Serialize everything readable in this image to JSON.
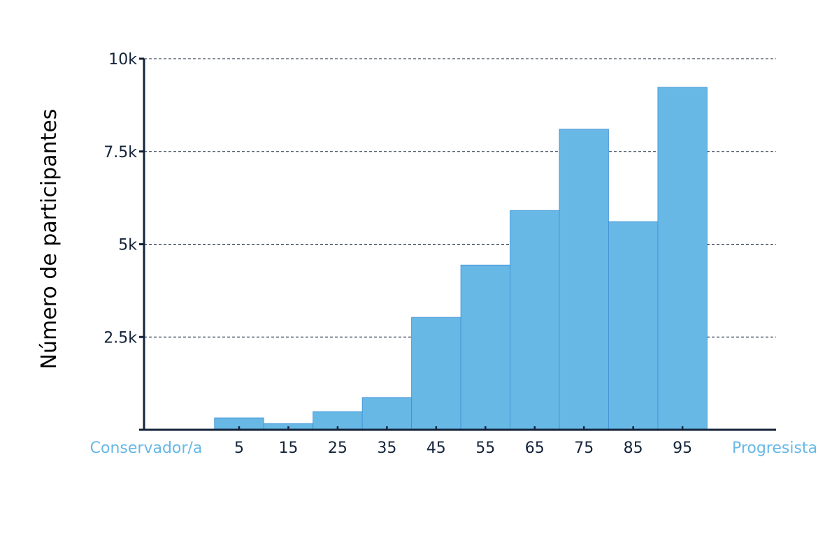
{
  "chart_data": {
    "type": "bar",
    "title": "",
    "xlabel": "",
    "ylabel": "Número de participantes",
    "x_left_label": "Conservador/a",
    "x_right_label": "Progresista",
    "categories": [
      "5",
      "15",
      "25",
      "35",
      "45",
      "55",
      "65",
      "75",
      "85",
      "95"
    ],
    "bin_edges": [
      0,
      10,
      20,
      30,
      40,
      50,
      60,
      70,
      80,
      90,
      100
    ],
    "values": [
      320,
      170,
      490,
      870,
      3030,
      4440,
      5910,
      8100,
      5610,
      9230
    ],
    "ylim": [
      0,
      10000
    ],
    "xlim": [
      -14.3,
      114
    ],
    "yticks": [
      {
        "value": 2500,
        "label": "2.5k"
      },
      {
        "value": 5000,
        "label": "5k"
      },
      {
        "value": 7500,
        "label": "7.5k"
      },
      {
        "value": 10000,
        "label": "10k"
      }
    ],
    "grid": true,
    "colors": {
      "bar": "#67b8e5",
      "bar_edge": "#3d8fd6",
      "axis": "#14233a",
      "text": "#14233a",
      "accent_text": "#67b8e5"
    }
  }
}
